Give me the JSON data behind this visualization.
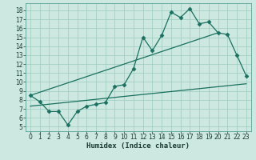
{
  "xlabel": "Humidex (Indice chaleur)",
  "bg_color": "#cce8e0",
  "grid_color": "#9eccc0",
  "line_color": "#1a7060",
  "xlim": [
    -0.5,
    23.5
  ],
  "ylim": [
    4.5,
    18.8
  ],
  "xticks": [
    0,
    1,
    2,
    3,
    4,
    5,
    6,
    7,
    8,
    9,
    10,
    11,
    12,
    13,
    14,
    15,
    16,
    17,
    18,
    19,
    20,
    21,
    22,
    23
  ],
  "yticks": [
    5,
    6,
    7,
    8,
    9,
    10,
    11,
    12,
    13,
    14,
    15,
    16,
    17,
    18
  ],
  "line1_x": [
    0,
    1,
    2,
    3,
    4,
    5,
    6,
    7,
    8,
    9,
    10,
    11,
    12,
    13,
    14,
    15,
    16,
    17,
    18,
    19,
    20,
    21,
    22,
    23
  ],
  "line1_y": [
    8.5,
    7.8,
    6.7,
    6.7,
    5.2,
    6.7,
    7.3,
    7.5,
    7.7,
    9.5,
    9.7,
    11.5,
    15.0,
    13.5,
    15.2,
    17.8,
    17.2,
    18.2,
    16.5,
    16.7,
    15.5,
    15.3,
    13.0,
    10.7
  ],
  "line2_x": [
    0,
    20
  ],
  "line2_y": [
    8.5,
    15.5
  ],
  "line3_x": [
    0,
    23
  ],
  "line3_y": [
    7.3,
    9.8
  ],
  "marker": "D",
  "markersize": 2.5,
  "linewidth": 0.9,
  "tick_fontsize": 5.5,
  "xlabel_fontsize": 6.5
}
